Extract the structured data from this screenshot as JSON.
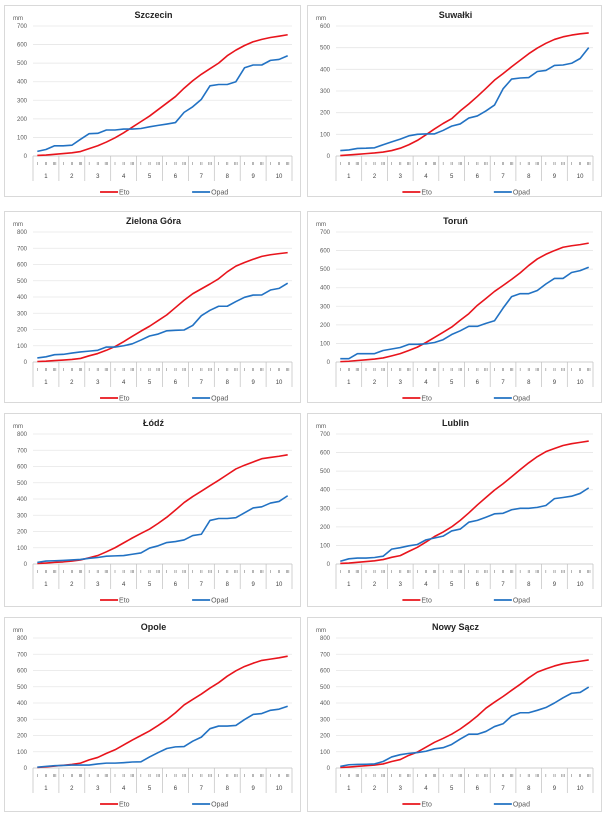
{
  "colors": {
    "eto": "#e8141c",
    "opad": "#2272c3",
    "grid": "#e6e6e6",
    "axis": "#bfbfbf"
  },
  "chart_data": [
    {
      "type": "line",
      "title": "Szczecin",
      "ylabel": "mm",
      "ylim": [
        0,
        700
      ],
      "yticks": [
        0,
        100,
        200,
        300,
        400,
        500,
        600,
        700
      ],
      "categories_major": [
        "1",
        "2",
        "3",
        "4",
        "5",
        "6",
        "7",
        "8",
        "9",
        "10"
      ],
      "categories_minor": [
        "I",
        "II",
        "III"
      ],
      "legend": "bottom",
      "series": [
        {
          "name": "Eto",
          "values": [
            3,
            5,
            9,
            13,
            17,
            24,
            40,
            55,
            75,
            98,
            125,
            155,
            185,
            215,
            250,
            285,
            320,
            365,
            405,
            440,
            470,
            500,
            540,
            570,
            595,
            615,
            628,
            638,
            645,
            653
          ]
        },
        {
          "name": "Opad",
          "values": [
            25,
            35,
            55,
            55,
            58,
            90,
            120,
            122,
            140,
            140,
            145,
            145,
            148,
            157,
            165,
            172,
            180,
            235,
            265,
            305,
            378,
            385,
            385,
            400,
            475,
            490,
            490,
            515,
            520,
            540
          ]
        }
      ]
    },
    {
      "type": "line",
      "title": "Suwałki",
      "ylabel": "mm",
      "ylim": [
        0,
        600
      ],
      "yticks": [
        0,
        100,
        200,
        300,
        400,
        500,
        600
      ],
      "categories_major": [
        "1",
        "2",
        "3",
        "4",
        "5",
        "6",
        "7",
        "8",
        "9",
        "10"
      ],
      "categories_minor": [
        "I",
        "II",
        "III"
      ],
      "legend": "bottom",
      "series": [
        {
          "name": "Eto",
          "values": [
            2,
            5,
            8,
            11,
            14,
            18,
            25,
            36,
            52,
            72,
            98,
            125,
            150,
            172,
            208,
            240,
            275,
            312,
            350,
            380,
            412,
            442,
            472,
            498,
            520,
            538,
            550,
            558,
            564,
            568
          ]
        },
        {
          "name": "Opad",
          "values": [
            25,
            28,
            35,
            36,
            38,
            52,
            65,
            78,
            93,
            100,
            102,
            102,
            118,
            138,
            148,
            175,
            185,
            208,
            235,
            310,
            355,
            360,
            362,
            390,
            395,
            418,
            420,
            428,
            450,
            500
          ]
        }
      ]
    },
    {
      "type": "line",
      "title": "Zielona Góra",
      "ylabel": "mm",
      "ylim": [
        0,
        800
      ],
      "yticks": [
        0,
        100,
        200,
        300,
        400,
        500,
        600,
        700,
        800
      ],
      "categories_major": [
        "1",
        "2",
        "3",
        "4",
        "5",
        "6",
        "7",
        "8",
        "9",
        "10"
      ],
      "categories_minor": [
        "I",
        "II",
        "III"
      ],
      "legend": "bottom",
      "series": [
        {
          "name": "Eto",
          "values": [
            3,
            5,
            9,
            12,
            16,
            22,
            38,
            52,
            72,
            95,
            125,
            158,
            190,
            220,
            255,
            290,
            335,
            380,
            420,
            450,
            480,
            512,
            555,
            590,
            612,
            632,
            650,
            660,
            667,
            673
          ]
        },
        {
          "name": "Opad",
          "values": [
            25,
            32,
            45,
            47,
            55,
            62,
            67,
            72,
            92,
            92,
            100,
            112,
            135,
            160,
            172,
            192,
            195,
            197,
            225,
            285,
            318,
            343,
            343,
            372,
            398,
            412,
            413,
            443,
            453,
            485
          ]
        }
      ]
    },
    {
      "type": "line",
      "title": "Toruń",
      "ylabel": "mm",
      "ylim": [
        0,
        700
      ],
      "yticks": [
        0,
        100,
        200,
        300,
        400,
        500,
        600,
        700
      ],
      "categories_major": [
        "1",
        "2",
        "3",
        "4",
        "5",
        "6",
        "7",
        "8",
        "9",
        "10"
      ],
      "categories_minor": [
        "I",
        "II",
        "III"
      ],
      "legend": "bottom",
      "series": [
        {
          "name": "Eto",
          "values": [
            2,
            4,
            8,
            12,
            16,
            22,
            33,
            45,
            62,
            80,
            105,
            132,
            160,
            188,
            225,
            260,
            305,
            342,
            380,
            412,
            445,
            480,
            520,
            555,
            580,
            600,
            618,
            626,
            632,
            640
          ]
        },
        {
          "name": "Opad",
          "values": [
            18,
            18,
            45,
            45,
            45,
            62,
            70,
            78,
            95,
            95,
            98,
            105,
            120,
            148,
            168,
            192,
            192,
            208,
            222,
            290,
            352,
            368,
            368,
            385,
            420,
            450,
            450,
            482,
            492,
            510
          ]
        }
      ]
    },
    {
      "type": "line",
      "title": "Łódź",
      "ylabel": "mm",
      "ylim": [
        0,
        800
      ],
      "yticks": [
        0,
        100,
        200,
        300,
        400,
        500,
        600,
        700,
        800
      ],
      "categories_major": [
        "1",
        "2",
        "3",
        "4",
        "5",
        "6",
        "7",
        "8",
        "9",
        "10"
      ],
      "categories_minor": [
        "I",
        "II",
        "III"
      ],
      "legend": "bottom",
      "series": [
        {
          "name": "Eto",
          "values": [
            3,
            6,
            10,
            13,
            18,
            25,
            38,
            52,
            75,
            100,
            130,
            160,
            188,
            215,
            250,
            288,
            332,
            378,
            415,
            448,
            482,
            515,
            550,
            585,
            608,
            628,
            648,
            656,
            663,
            672
          ]
        },
        {
          "name": "Opad",
          "values": [
            10,
            18,
            20,
            22,
            25,
            28,
            35,
            40,
            48,
            50,
            52,
            60,
            68,
            98,
            112,
            132,
            138,
            148,
            175,
            183,
            268,
            280,
            280,
            285,
            315,
            345,
            352,
            375,
            385,
            420
          ]
        }
      ]
    },
    {
      "type": "line",
      "title": "Lublin",
      "ylabel": "mm",
      "ylim": [
        0,
        700
      ],
      "yticks": [
        0,
        100,
        200,
        300,
        400,
        500,
        600,
        700
      ],
      "categories_major": [
        "1",
        "2",
        "3",
        "4",
        "5",
        "6",
        "7",
        "8",
        "9",
        "10"
      ],
      "categories_minor": [
        "I",
        "II",
        "III"
      ],
      "legend": "bottom",
      "series": [
        {
          "name": "Eto",
          "values": [
            3,
            5,
            9,
            13,
            17,
            24,
            36,
            45,
            68,
            90,
            118,
            148,
            172,
            200,
            235,
            275,
            318,
            358,
            398,
            432,
            470,
            508,
            545,
            578,
            605,
            622,
            638,
            648,
            655,
            662
          ]
        },
        {
          "name": "Opad",
          "values": [
            15,
            28,
            32,
            32,
            35,
            42,
            80,
            88,
            98,
            105,
            130,
            140,
            150,
            178,
            188,
            225,
            235,
            252,
            270,
            273,
            292,
            300,
            300,
            305,
            315,
            352,
            358,
            365,
            380,
            410
          ]
        }
      ]
    },
    {
      "type": "line",
      "title": "Opole",
      "ylabel": "mm",
      "ylim": [
        0,
        800
      ],
      "yticks": [
        0,
        100,
        200,
        300,
        400,
        500,
        600,
        700,
        800
      ],
      "categories_major": [
        "1",
        "2",
        "3",
        "4",
        "5",
        "6",
        "7",
        "8",
        "9",
        "10"
      ],
      "categories_minor": [
        "I",
        "II",
        "III"
      ],
      "legend": "bottom",
      "series": [
        {
          "name": "Eto",
          "values": [
            3,
            7,
            12,
            17,
            22,
            30,
            50,
            65,
            90,
            112,
            142,
            172,
            200,
            228,
            262,
            298,
            340,
            388,
            422,
            455,
            492,
            525,
            565,
            598,
            625,
            645,
            662,
            670,
            678,
            688
          ]
        },
        {
          "name": "Opad",
          "values": [
            5,
            10,
            14,
            16,
            18,
            18,
            18,
            25,
            30,
            30,
            33,
            37,
            38,
            68,
            95,
            120,
            130,
            132,
            165,
            190,
            242,
            258,
            258,
            262,
            298,
            330,
            335,
            355,
            362,
            380
          ]
        }
      ]
    },
    {
      "type": "line",
      "title": "Nowy Sącz",
      "ylabel": "mm",
      "ylim": [
        0,
        800
      ],
      "yticks": [
        0,
        100,
        200,
        300,
        400,
        500,
        600,
        700,
        800
      ],
      "categories_major": [
        "1",
        "2",
        "3",
        "4",
        "5",
        "6",
        "7",
        "8",
        "9",
        "10"
      ],
      "categories_minor": [
        "I",
        "II",
        "III"
      ],
      "legend": "bottom",
      "series": [
        {
          "name": "Eto",
          "values": [
            3,
            6,
            10,
            14,
            18,
            25,
            40,
            52,
            78,
            98,
            128,
            158,
            182,
            208,
            240,
            278,
            320,
            368,
            405,
            440,
            478,
            515,
            555,
            590,
            610,
            628,
            642,
            650,
            657,
            665
          ]
        },
        {
          "name": "Opad",
          "values": [
            10,
            20,
            22,
            23,
            25,
            40,
            68,
            82,
            90,
            95,
            103,
            118,
            125,
            145,
            178,
            208,
            208,
            225,
            255,
            272,
            320,
            340,
            340,
            355,
            372,
            400,
            432,
            460,
            465,
            498
          ]
        }
      ]
    }
  ]
}
